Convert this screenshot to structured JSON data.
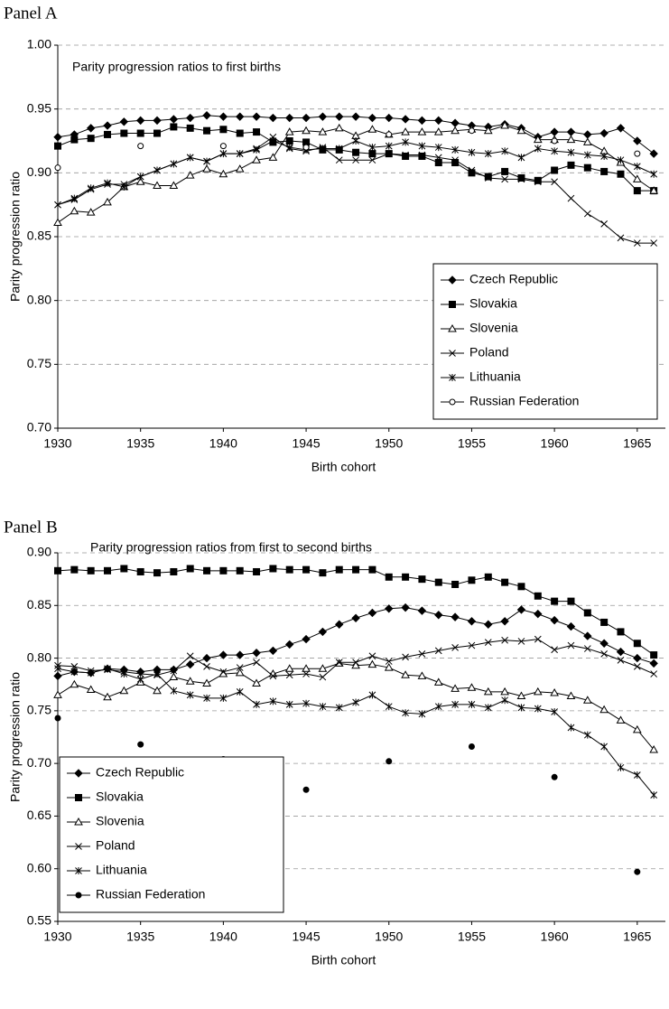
{
  "chart_data": [
    {
      "type": "line",
      "panel": "Panel A",
      "title": "Parity progression ratios to first births",
      "xlabel": "Birth cohort",
      "ylabel": "Parity progression ratio",
      "x": [
        1930,
        1931,
        1932,
        1933,
        1934,
        1935,
        1936,
        1937,
        1938,
        1939,
        1940,
        1941,
        1942,
        1943,
        1944,
        1945,
        1946,
        1947,
        1948,
        1949,
        1950,
        1951,
        1952,
        1953,
        1954,
        1955,
        1956,
        1957,
        1958,
        1959,
        1960,
        1961,
        1962,
        1963,
        1964,
        1965,
        1966
      ],
      "xlim": [
        1930,
        1966.7
      ],
      "xticks": [
        1930,
        1935,
        1940,
        1945,
        1950,
        1955,
        1960,
        1965
      ],
      "ylim": [
        0.7,
        1.0
      ],
      "yticks": [
        {
          "value": 0.7,
          "label": "0.70"
        },
        {
          "value": 0.75,
          "label": "0.75"
        },
        {
          "value": 0.8,
          "label": "0.80"
        },
        {
          "value": 0.85,
          "label": "0.85"
        },
        {
          "value": 0.9,
          "label": "0.90"
        },
        {
          "value": 0.95,
          "label": "0.95"
        },
        {
          "value": 1.0,
          "label": "1.00"
        }
      ],
      "grid": true,
      "legend": "lower right",
      "series": [
        {
          "name": "Czech Republic",
          "color": "#000000",
          "marker": "diamond",
          "values": [
            0.928,
            0.93,
            0.935,
            0.937,
            0.94,
            0.941,
            0.941,
            0.942,
            0.943,
            0.945,
            0.944,
            0.944,
            0.944,
            0.943,
            0.943,
            0.943,
            0.944,
            0.944,
            0.944,
            0.943,
            0.943,
            0.942,
            0.941,
            0.941,
            0.939,
            0.937,
            0.936,
            0.938,
            0.935,
            0.928,
            0.932,
            0.932,
            0.93,
            0.931,
            0.935,
            0.925,
            0.915
          ]
        },
        {
          "name": "Slovakia",
          "color": "#000000",
          "marker": "square",
          "values": [
            0.921,
            0.926,
            0.927,
            0.93,
            0.931,
            0.931,
            0.931,
            0.936,
            0.935,
            0.933,
            0.934,
            0.931,
            0.932,
            0.924,
            0.925,
            0.924,
            0.918,
            0.918,
            0.916,
            0.915,
            0.915,
            0.913,
            0.913,
            0.908,
            0.908,
            0.9,
            0.897,
            0.901,
            0.896,
            0.894,
            0.902,
            0.906,
            0.904,
            0.901,
            0.899,
            0.886,
            0.886
          ]
        },
        {
          "name": "Slovenia",
          "color": "#000000",
          "marker": "triangle-open",
          "values": [
            0.861,
            0.87,
            0.869,
            0.877,
            0.889,
            0.893,
            0.89,
            0.89,
            0.898,
            0.903,
            0.899,
            0.903,
            0.91,
            0.912,
            0.932,
            0.933,
            0.932,
            0.935,
            0.929,
            0.934,
            0.93,
            0.932,
            0.932,
            0.932,
            0.933,
            0.934,
            0.933,
            0.937,
            0.933,
            0.926,
            0.926,
            0.926,
            0.924,
            0.917,
            0.908,
            0.895,
            0.886
          ]
        },
        {
          "name": "Poland",
          "color": "#000000",
          "marker": "x",
          "values": [
            0.875,
            0.879,
            0.887,
            0.891,
            0.891,
            0.897,
            0.902,
            0.907,
            0.912,
            0.909,
            0.915,
            0.915,
            0.919,
            0.928,
            0.919,
            0.917,
            0.92,
            0.91,
            0.91,
            0.91,
            0.915,
            0.914,
            0.914,
            0.912,
            0.91,
            0.902,
            0.896,
            0.895,
            0.895,
            0.893,
            0.893,
            0.88,
            0.868,
            0.86,
            0.849,
            0.845,
            0.845
          ]
        },
        {
          "name": "Lithuania",
          "color": "#000000",
          "marker": "asterisk",
          "values": [
            0.875,
            0.88,
            0.888,
            0.892,
            0.889,
            0.897,
            0.902,
            0.907,
            0.912,
            0.909,
            0.915,
            0.915,
            0.918,
            0.925,
            0.92,
            0.918,
            0.919,
            0.919,
            0.925,
            0.92,
            0.921,
            0.924,
            0.921,
            0.92,
            0.918,
            0.916,
            0.915,
            0.917,
            0.912,
            0.919,
            0.917,
            0.916,
            0.914,
            0.913,
            0.91,
            0.905,
            0.899
          ]
        },
        {
          "name": "Russian Federation",
          "color": "#000000",
          "marker": "circle-open",
          "values": [
            0.904,
            null,
            null,
            null,
            null,
            0.921,
            null,
            null,
            null,
            null,
            0.921,
            null,
            null,
            null,
            null,
            0.92,
            null,
            null,
            null,
            null,
            0.93,
            null,
            null,
            null,
            null,
            0.933,
            null,
            null,
            null,
            null,
            0.925,
            null,
            null,
            null,
            null,
            0.915,
            null
          ]
        }
      ]
    },
    {
      "type": "line",
      "panel": "Panel B",
      "title": "Parity progression ratios from first to second births",
      "xlabel": "Birth cohort",
      "ylabel": "Parity progression ratio",
      "x": [
        1930,
        1931,
        1932,
        1933,
        1934,
        1935,
        1936,
        1937,
        1938,
        1939,
        1940,
        1941,
        1942,
        1943,
        1944,
        1945,
        1946,
        1947,
        1948,
        1949,
        1950,
        1951,
        1952,
        1953,
        1954,
        1955,
        1956,
        1957,
        1958,
        1959,
        1960,
        1961,
        1962,
        1963,
        1964,
        1965,
        1966
      ],
      "xlim": [
        1930,
        1966.7
      ],
      "xticks": [
        1930,
        1935,
        1940,
        1945,
        1950,
        1955,
        1960,
        1965
      ],
      "ylim": [
        0.55,
        0.9
      ],
      "yticks": [
        {
          "value": 0.55,
          "label": "0.55"
        },
        {
          "value": 0.6,
          "label": "0.60"
        },
        {
          "value": 0.65,
          "label": "0.65"
        },
        {
          "value": 0.7,
          "label": "0.70"
        },
        {
          "value": 0.75,
          "label": "0.75"
        },
        {
          "value": 0.8,
          "label": "0.80"
        },
        {
          "value": 0.85,
          "label": "0.85"
        },
        {
          "value": 0.9,
          "label": "0.90"
        }
      ],
      "grid": true,
      "legend": "lower left",
      "series": [
        {
          "name": "Czech Republic",
          "color": "#000000",
          "marker": "diamond",
          "values": [
            0.783,
            0.787,
            0.786,
            0.79,
            0.789,
            0.787,
            0.789,
            0.789,
            0.794,
            0.8,
            0.803,
            0.803,
            0.805,
            0.807,
            0.813,
            0.818,
            0.825,
            0.832,
            0.838,
            0.843,
            0.847,
            0.848,
            0.845,
            0.841,
            0.839,
            0.835,
            0.832,
            0.835,
            0.846,
            0.842,
            0.836,
            0.83,
            0.821,
            0.814,
            0.806,
            0.8,
            0.795
          ]
        },
        {
          "name": "Slovakia",
          "color": "#000000",
          "marker": "square",
          "values": [
            0.883,
            0.884,
            0.883,
            0.883,
            0.885,
            0.882,
            0.881,
            0.882,
            0.885,
            0.883,
            0.883,
            0.883,
            0.882,
            0.885,
            0.884,
            0.884,
            0.881,
            0.884,
            0.884,
            0.884,
            0.877,
            0.877,
            0.875,
            0.872,
            0.87,
            0.874,
            0.877,
            0.872,
            0.868,
            0.859,
            0.854,
            0.854,
            0.843,
            0.834,
            0.825,
            0.814,
            0.803
          ]
        },
        {
          "name": "Slovenia",
          "color": "#000000",
          "marker": "triangle-open",
          "values": [
            0.765,
            0.775,
            0.77,
            0.763,
            0.769,
            0.777,
            0.769,
            0.782,
            0.778,
            0.776,
            0.785,
            0.786,
            0.776,
            0.785,
            0.79,
            0.79,
            0.79,
            0.795,
            0.793,
            0.794,
            0.791,
            0.784,
            0.783,
            0.777,
            0.771,
            0.772,
            0.768,
            0.768,
            0.764,
            0.768,
            0.767,
            0.764,
            0.76,
            0.751,
            0.741,
            0.732,
            0.713
          ]
        },
        {
          "name": "Poland",
          "color": "#000000",
          "marker": "x",
          "values": [
            0.793,
            0.792,
            0.788,
            0.789,
            0.787,
            0.785,
            0.784,
            0.788,
            0.802,
            0.792,
            0.787,
            0.791,
            0.796,
            0.783,
            0.784,
            0.785,
            0.782,
            0.796,
            0.796,
            0.802,
            0.797,
            0.801,
            0.804,
            0.807,
            0.81,
            0.812,
            0.815,
            0.817,
            0.816,
            0.818,
            0.808,
            0.812,
            0.809,
            0.804,
            0.798,
            0.792,
            0.785
          ]
        },
        {
          "name": "Lithuania",
          "color": "#000000",
          "marker": "asterisk",
          "values": [
            0.79,
            0.787,
            0.786,
            0.79,
            0.785,
            0.78,
            0.785,
            0.769,
            0.765,
            0.762,
            0.762,
            0.768,
            0.756,
            0.759,
            0.756,
            0.757,
            0.754,
            0.753,
            0.758,
            0.765,
            0.754,
            0.748,
            0.747,
            0.754,
            0.756,
            0.756,
            0.753,
            0.76,
            0.753,
            0.752,
            0.749,
            0.734,
            0.727,
            0.716,
            0.696,
            0.689,
            0.67
          ]
        },
        {
          "name": "Russian Federation",
          "color": "#000000",
          "marker": "circle",
          "values": [
            0.743,
            null,
            null,
            null,
            null,
            0.718,
            null,
            null,
            null,
            null,
            0.704,
            null,
            null,
            null,
            null,
            0.675,
            null,
            null,
            null,
            null,
            0.702,
            null,
            null,
            null,
            null,
            0.716,
            null,
            null,
            null,
            null,
            0.687,
            null,
            null,
            null,
            null,
            0.597,
            null
          ]
        }
      ]
    }
  ]
}
